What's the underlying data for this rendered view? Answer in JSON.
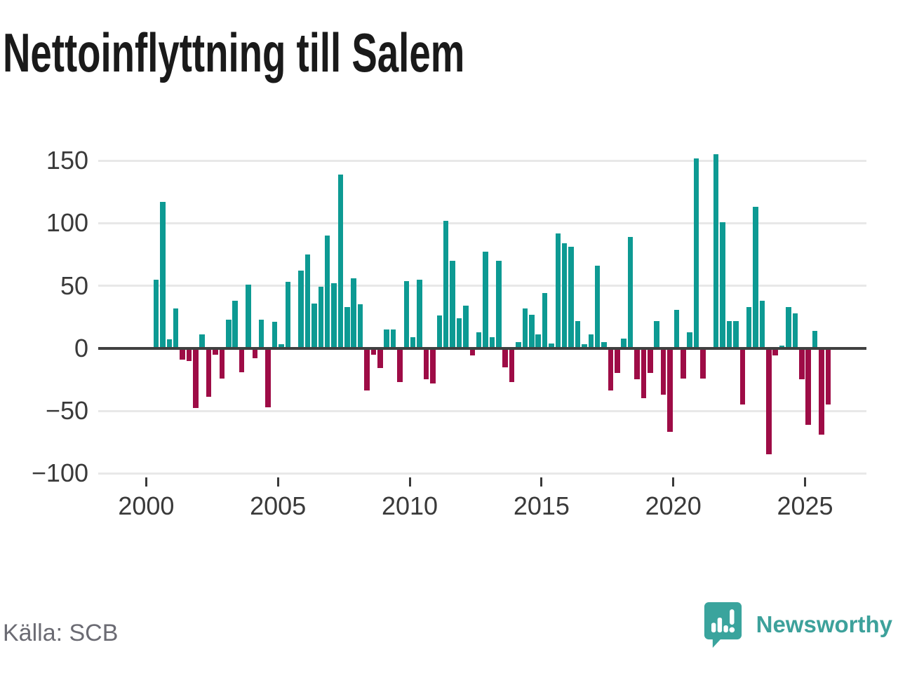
{
  "title": "Nettoinflyttning till Salem",
  "source": "Källa: SCB",
  "branding": {
    "name": "Newsworthy",
    "logo_icon": "speech-bubble-bar-chart-icon"
  },
  "colors": {
    "positive_bar": "#0d9a93",
    "negative_bar": "#9e0c46",
    "zero_line": "#404040",
    "gridline": "#e8e8e8",
    "axis_text": "#3a3a3a",
    "title_text": "#1a1a1a",
    "source_text": "#6b6b73",
    "brand_teal": "#3da19b"
  },
  "chart_data": {
    "type": "bar",
    "title": "Nettoinflyttning till Salem",
    "xlabel": "",
    "ylabel": "",
    "unit": "net migration per quarter (persons)",
    "grid": "horizontal",
    "legend": "none",
    "ylim": [
      -100,
      160
    ],
    "y_ticks": [
      150,
      100,
      50,
      0,
      -50,
      -100
    ],
    "y_tick_labels": [
      "150",
      "100",
      "50",
      "0",
      "−50",
      "−100"
    ],
    "x_ticks": [
      2000,
      2005,
      2010,
      2015,
      2020,
      2025
    ],
    "x_tick_labels": [
      "2000",
      "2005",
      "2010",
      "2015",
      "2020",
      "2025"
    ],
    "x": [
      "2000Q2",
      "2000Q3",
      "2000Q4",
      "2001Q1",
      "2001Q2",
      "2001Q3",
      "2001Q4",
      "2002Q1",
      "2002Q2",
      "2002Q3",
      "2002Q4",
      "2003Q1",
      "2003Q2",
      "2003Q3",
      "2003Q4",
      "2004Q1",
      "2004Q2",
      "2004Q3",
      "2004Q4",
      "2005Q1",
      "2005Q2",
      "2005Q3",
      "2005Q4",
      "2006Q1",
      "2006Q2",
      "2006Q3",
      "2006Q4",
      "2007Q1",
      "2007Q2",
      "2007Q3",
      "2007Q4",
      "2008Q1",
      "2008Q2",
      "2008Q3",
      "2008Q4",
      "2009Q1",
      "2009Q2",
      "2009Q3",
      "2009Q4",
      "2010Q1",
      "2010Q2",
      "2010Q3",
      "2010Q4",
      "2011Q1",
      "2011Q2",
      "2011Q3",
      "2011Q4",
      "2012Q1",
      "2012Q2",
      "2012Q3",
      "2012Q4",
      "2013Q1",
      "2013Q2",
      "2013Q3",
      "2013Q4",
      "2014Q1",
      "2014Q2",
      "2014Q3",
      "2014Q4",
      "2015Q1",
      "2015Q2",
      "2015Q3",
      "2015Q4",
      "2016Q1",
      "2016Q2",
      "2016Q3",
      "2016Q4",
      "2017Q1",
      "2017Q2",
      "2017Q3",
      "2017Q4",
      "2018Q1",
      "2018Q2",
      "2018Q3",
      "2018Q4",
      "2019Q1",
      "2019Q2",
      "2019Q3",
      "2019Q4",
      "2020Q1",
      "2020Q2",
      "2020Q3",
      "2020Q4",
      "2021Q1",
      "2021Q2",
      "2021Q3",
      "2021Q4",
      "2022Q1",
      "2022Q2",
      "2022Q3",
      "2022Q4",
      "2023Q1",
      "2023Q2",
      "2023Q3",
      "2023Q4",
      "2024Q1",
      "2024Q2",
      "2024Q3",
      "2024Q4",
      "2025Q1",
      "2025Q2",
      "2025Q3",
      "2025Q4"
    ],
    "values": [
      55,
      117,
      7,
      32,
      -9,
      -10,
      -48,
      11,
      -39,
      -5,
      -24,
      23,
      38,
      -19,
      51,
      -8,
      23,
      -47,
      21,
      3,
      53,
      0,
      62,
      75,
      36,
      49,
      90,
      52,
      139,
      33,
      56,
      35,
      -34,
      -5,
      -16,
      15,
      15,
      -27,
      54,
      9,
      55,
      -25,
      -28,
      26,
      102,
      70,
      24,
      34,
      -6,
      13,
      77,
      9,
      70,
      -15,
      -27,
      5,
      32,
      27,
      11,
      44,
      4,
      92,
      84,
      81,
      22,
      3,
      11,
      66,
      5,
      -34,
      -20,
      8,
      89,
      -25,
      -40,
      -20,
      22,
      -37,
      -67,
      31,
      -24,
      13,
      152,
      -24,
      0,
      155,
      101,
      22,
      22,
      -45,
      33,
      113,
      38,
      -85,
      -6,
      2,
      33,
      28,
      -25,
      -61,
      14,
      -69,
      -45
    ]
  }
}
